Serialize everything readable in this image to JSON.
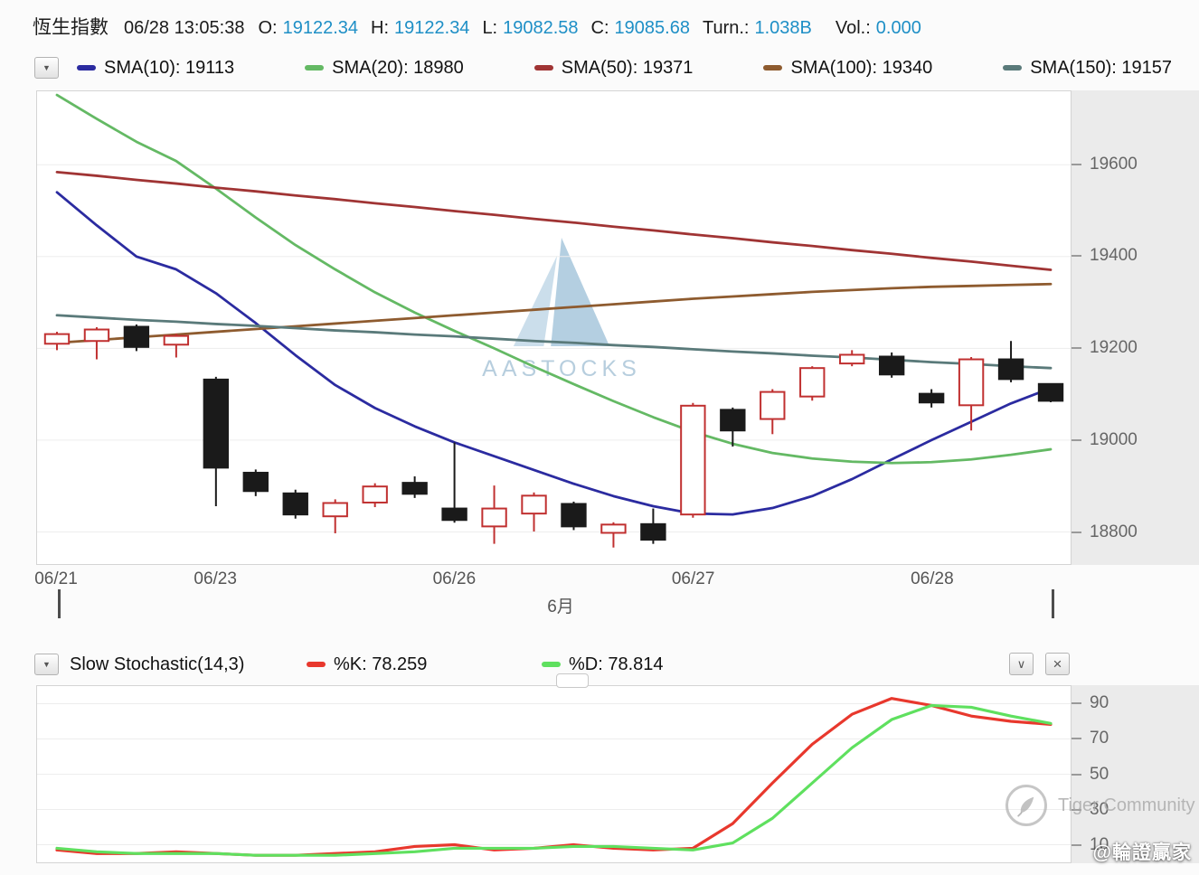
{
  "header": {
    "title": "恆生指數",
    "datetime": "06/28 13:05:38",
    "fields": [
      {
        "label": "O:",
        "value": "19122.34"
      },
      {
        "label": "H:",
        "value": "19122.34"
      },
      {
        "label": "L:",
        "value": "19082.58"
      },
      {
        "label": "C:",
        "value": "19085.68"
      },
      {
        "label": "Turn.:",
        "value": "1.038B"
      },
      {
        "label": "Vol.:",
        "value": "0.000"
      }
    ],
    "value_color": "#1E8FC6"
  },
  "sma_legend": [
    {
      "label": "SMA(10): 19113",
      "color": "#2B2BA0"
    },
    {
      "label": "SMA(20): 18980",
      "color": "#64B964"
    },
    {
      "label": "SMA(50): 19371",
      "color": "#A03434"
    },
    {
      "label": "SMA(100): 19340",
      "color": "#8E5B2F"
    },
    {
      "label": "SMA(150): 19157",
      "color": "#5A7A7A"
    }
  ],
  "stoch": {
    "title": "Slow Stochastic(14,3)",
    "k_label": "%K: 78.259",
    "d_label": "%D: 78.814",
    "k_color": "#E8382D",
    "d_color": "#5FE05F"
  },
  "icons": {
    "dropdown": "▼",
    "collapse": "∨",
    "close": "×"
  },
  "watermarks": {
    "aastocks": "AASTOCKS",
    "tiger": "Tiger Community",
    "handle": "@輪證贏家"
  },
  "chart_data": [
    {
      "type": "candlestick",
      "title": "恆生指數 intraday (hourly) candlestick with SMA overlays",
      "ylim": [
        18730,
        19760
      ],
      "yticks": [
        19600,
        19400,
        19200,
        19000,
        18800
      ],
      "x_labels": [
        {
          "i": 0,
          "label": "06/21"
        },
        {
          "i": 4,
          "label": "06/23"
        },
        {
          "i": 10,
          "label": "06/26"
        },
        {
          "i": 16,
          "label": "06/27"
        },
        {
          "i": 22,
          "label": "06/28"
        }
      ],
      "month_label": "6月",
      "up_color": "#C03030",
      "down_color": "#1A1A1A",
      "candles": [
        [
          19210,
          19236,
          19196,
          19231
        ],
        [
          19216,
          19246,
          19176,
          19241
        ],
        [
          19247,
          19252,
          19194,
          19203
        ],
        [
          19208,
          19232,
          19180,
          19227
        ],
        [
          19132,
          19138,
          18856,
          18940
        ],
        [
          18929,
          18936,
          18878,
          18889
        ],
        [
          18884,
          18892,
          18829,
          18838
        ],
        [
          18834,
          18871,
          18797,
          18863
        ],
        [
          18864,
          18906,
          18854,
          18899
        ],
        [
          18907,
          18921,
          18874,
          18883
        ],
        [
          18851,
          18995,
          18820,
          18826
        ],
        [
          18812,
          18901,
          18774,
          18851
        ],
        [
          18840,
          18886,
          18801,
          18879
        ],
        [
          18861,
          18866,
          18804,
          18812
        ],
        [
          18798,
          18821,
          18766,
          18816
        ],
        [
          18817,
          18851,
          18774,
          18783
        ],
        [
          18838,
          19081,
          18831,
          19075
        ],
        [
          19066,
          19071,
          18986,
          19021
        ],
        [
          19046,
          19111,
          19013,
          19105
        ],
        [
          19095,
          19161,
          19086,
          19157
        ],
        [
          19167,
          19196,
          19161,
          19186
        ],
        [
          19182,
          19191,
          19136,
          19143
        ],
        [
          19101,
          19111,
          19071,
          19082
        ],
        [
          19076,
          19181,
          19021,
          19176
        ],
        [
          19176,
          19216,
          19126,
          19133
        ],
        [
          19122.34,
          19122.34,
          19082.58,
          19085.68
        ]
      ],
      "series": [
        {
          "name": "SMA(10)",
          "color": "#2B2BA0",
          "values": [
            19540,
            19468,
            19400,
            19372,
            19320,
            19255,
            19185,
            19120,
            19070,
            19030,
            18995,
            18965,
            18935,
            18905,
            18878,
            18856,
            18840,
            18838,
            18852,
            18878,
            18915,
            18958,
            19000,
            19040,
            19080,
            19113
          ]
        },
        {
          "name": "SMA(20)",
          "color": "#64B964",
          "values": [
            19752,
            19700,
            19650,
            19608,
            19548,
            19485,
            19425,
            19372,
            19322,
            19278,
            19238,
            19200,
            19160,
            19122,
            19085,
            19050,
            19018,
            18992,
            18972,
            18960,
            18953,
            18950,
            18952,
            18958,
            18968,
            18980
          ]
        },
        {
          "name": "SMA(50)",
          "color": "#A03434",
          "values": [
            19584,
            19576,
            19567,
            19559,
            19550,
            19542,
            19533,
            19525,
            19516,
            19508,
            19499,
            19491,
            19482,
            19474,
            19465,
            19457,
            19448,
            19440,
            19431,
            19423,
            19414,
            19406,
            19397,
            19389,
            19380,
            19371
          ]
        },
        {
          "name": "SMA(100)",
          "color": "#8E5B2F",
          "values": [
            19212,
            19218,
            19224,
            19230,
            19236,
            19242,
            19248,
            19254,
            19260,
            19266,
            19272,
            19278,
            19284,
            19290,
            19296,
            19302,
            19308,
            19313,
            19318,
            19323,
            19327,
            19331,
            19334,
            19336,
            19338,
            19340
          ]
        },
        {
          "name": "SMA(150)",
          "color": "#5A7A7A",
          "values": [
            19272,
            19267,
            19262,
            19258,
            19253,
            19249,
            19244,
            19239,
            19235,
            19230,
            19226,
            19221,
            19216,
            19212,
            19207,
            19203,
            19198,
            19193,
            19189,
            19184,
            19180,
            19175,
            19170,
            19166,
            19161,
            19157
          ]
        }
      ]
    },
    {
      "type": "line",
      "title": "Slow Stochastic(14,3)",
      "ylim": [
        0,
        100
      ],
      "yticks": [
        90,
        70,
        50,
        30,
        10
      ],
      "series": [
        {
          "name": "%K",
          "color": "#E8382D",
          "values": [
            7,
            5,
            5,
            6,
            5,
            4,
            4,
            5,
            6,
            9,
            10,
            7,
            8,
            10,
            8,
            7,
            8,
            22,
            45,
            67,
            84,
            93,
            89,
            83,
            80,
            78.259
          ]
        },
        {
          "name": "%D",
          "color": "#5FE05F",
          "values": [
            8,
            6,
            5,
            5,
            5,
            4,
            4,
            4,
            5,
            6,
            8,
            8,
            8,
            9,
            9,
            8,
            7,
            11,
            25,
            45,
            65,
            81,
            89,
            88,
            83,
            78.814
          ]
        }
      ]
    }
  ]
}
